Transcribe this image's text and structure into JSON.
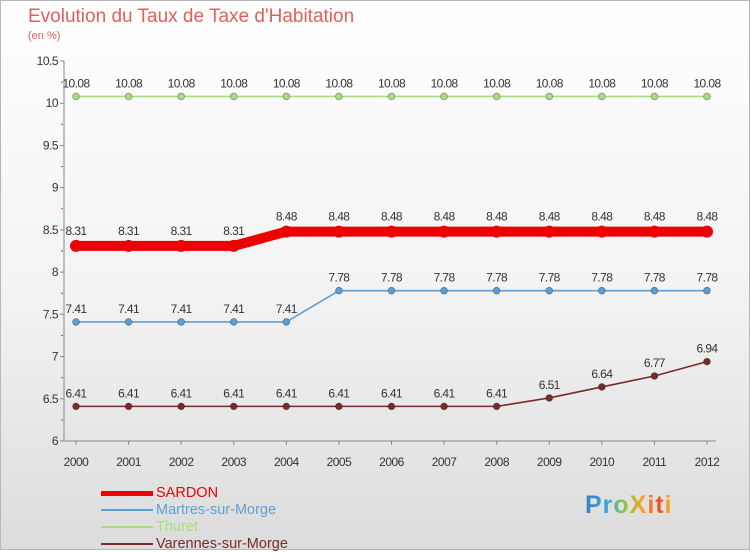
{
  "chart_data": {
    "type": "line",
    "title": "Evolution du Taux de Taxe d'Habitation",
    "subtitle": "(en %)",
    "x": [
      2000,
      2001,
      2002,
      2003,
      2004,
      2005,
      2006,
      2007,
      2008,
      2009,
      2010,
      2011,
      2012
    ],
    "ylim": [
      6,
      10.5
    ],
    "yticks": [
      6,
      6.5,
      7,
      7.5,
      8,
      8.5,
      9,
      9.5,
      10,
      10.5
    ],
    "grid": false,
    "series": [
      {
        "name": "SARDON",
        "color": "#ee0000",
        "values": [
          8.31,
          8.31,
          8.31,
          8.31,
          8.48,
          8.48,
          8.48,
          8.48,
          8.48,
          8.48,
          8.48,
          8.48,
          8.48
        ],
        "labels": [
          "8.31",
          "8.31",
          "8.31",
          "8.31",
          "8.48",
          "8.48",
          "8.48",
          "8.48",
          "8.48",
          "8.48",
          "8.48",
          "8.48",
          "8.48"
        ]
      },
      {
        "name": "Martres-sur-Morge",
        "color": "#5d9fd5",
        "values": [
          7.41,
          7.41,
          7.41,
          7.41,
          7.41,
          7.78,
          7.78,
          7.78,
          7.78,
          7.78,
          7.78,
          7.78,
          7.78
        ],
        "labels": [
          "7.41",
          "7.41",
          "7.41",
          "7.41",
          "7.41",
          "7.78",
          "7.78",
          "7.78",
          "7.78",
          "7.78",
          "7.78",
          "7.78",
          "7.78"
        ]
      },
      {
        "name": "Thuret",
        "color": "#a6dd80",
        "values": [
          10.08,
          10.08,
          10.08,
          10.08,
          10.08,
          10.08,
          10.08,
          10.08,
          10.08,
          10.08,
          10.08,
          10.08,
          10.08
        ],
        "labels": [
          "10.08",
          "10.08",
          "10.08",
          "10.08",
          "10.08",
          "10.08",
          "10.08",
          "10.08",
          "10.08",
          "10.08",
          "10.08",
          "10.08",
          "10.08"
        ]
      },
      {
        "name": "Varennes-sur-Morge",
        "color": "#7a2a2a",
        "values": [
          6.41,
          6.41,
          6.41,
          6.41,
          6.41,
          6.41,
          6.41,
          6.41,
          6.41,
          6.51,
          6.64,
          6.77,
          6.94
        ],
        "labels": [
          "6.41",
          "6.41",
          "6.41",
          "6.41",
          "6.41",
          "6.41",
          "6.41",
          "6.41",
          "6.41",
          "6.51",
          "6.64",
          "6.77",
          "6.94"
        ]
      }
    ]
  },
  "legend": {
    "items": [
      {
        "label": "SARDON",
        "color": "#ee0000"
      },
      {
        "label": "Martres-sur-Morge",
        "color": "#5d9fd5"
      },
      {
        "label": "Thuret",
        "color": "#a6dd80"
      },
      {
        "label": "Varennes-sur-Morge",
        "color": "#7a2a2a"
      }
    ]
  },
  "logo": {
    "text": "ProXiti"
  }
}
